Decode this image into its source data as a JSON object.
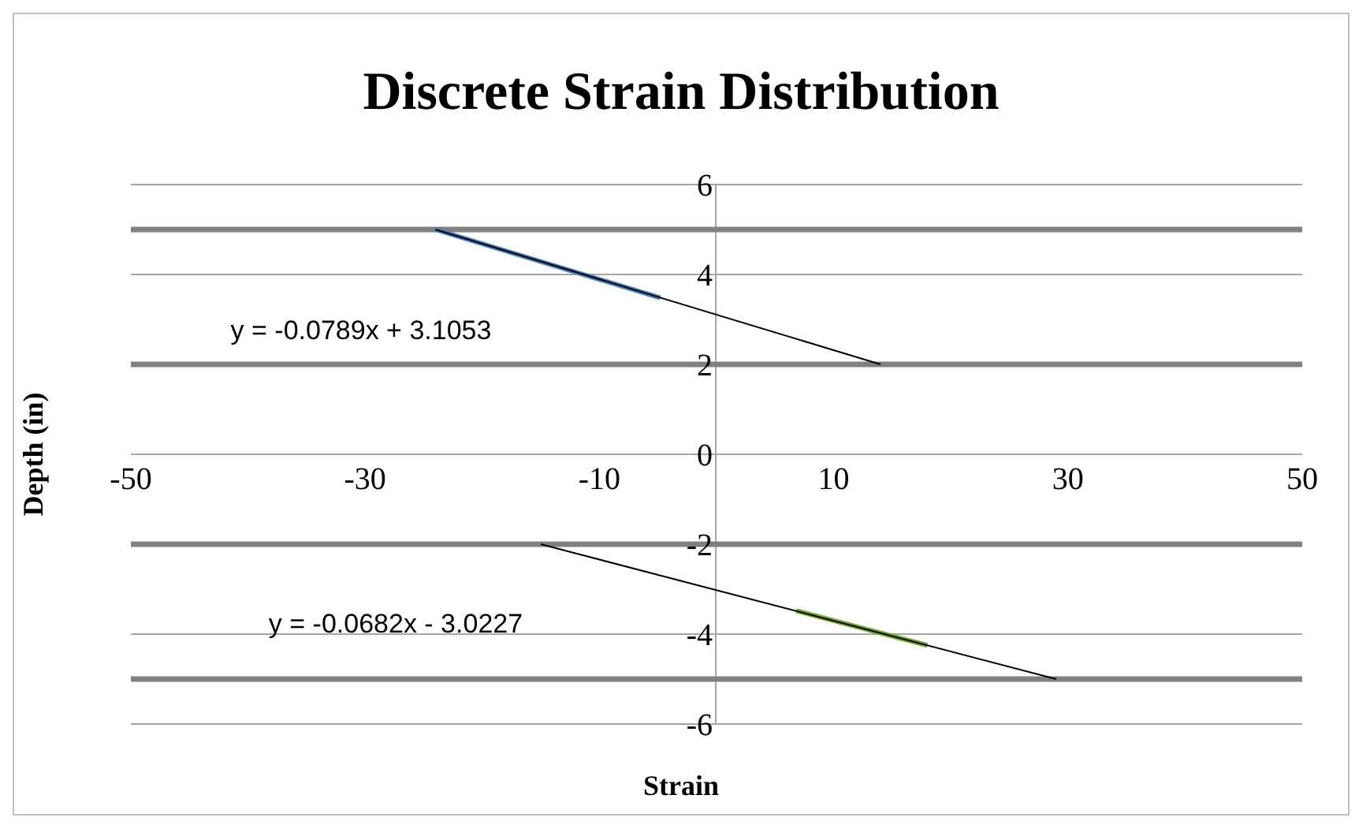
{
  "chart_data": {
    "type": "line",
    "title": "Discrete Strain Distribution",
    "xlabel": "Strain",
    "ylabel": "Depth (in)",
    "xlim": [
      -50,
      50
    ],
    "xticks": [
      -50,
      -30,
      -10,
      10,
      30,
      50
    ],
    "ylim": [
      -6,
      6
    ],
    "yticks": [
      -6,
      -4,
      -2,
      0,
      2,
      4,
      6
    ],
    "grid": "y",
    "marker": "none",
    "series": [
      {
        "color": "#808080",
        "x": [
          -50,
          50
        ],
        "values": [
          5,
          5
        ]
      },
      {
        "color": "#808080",
        "x": [
          -50,
          50
        ],
        "values": [
          2,
          2
        ]
      },
      {
        "color": "#808080",
        "x": [
          -50,
          50
        ],
        "values": [
          -2,
          -2
        ]
      },
      {
        "color": "#808080",
        "x": [
          -50,
          50
        ],
        "values": [
          -5,
          -5
        ]
      },
      {
        "color": "#4a7ebb",
        "x": [
          -24,
          -4.8
        ],
        "values": [
          5,
          3.48
        ]
      },
      {
        "color": "#77a33b",
        "x": [
          6.8,
          18
        ],
        "values": [
          -3.48,
          -4.25
        ]
      },
      {
        "color": "#000000",
        "x": [
          -24,
          14
        ],
        "values": [
          5,
          2
        ]
      },
      {
        "color": "#000000",
        "x": [
          -15,
          29
        ],
        "values": [
          -2,
          -5
        ]
      }
    ],
    "annotations": [
      "y = -0.0789x + 3.1053",
      "y = -0.0682x - 3.0227"
    ]
  }
}
